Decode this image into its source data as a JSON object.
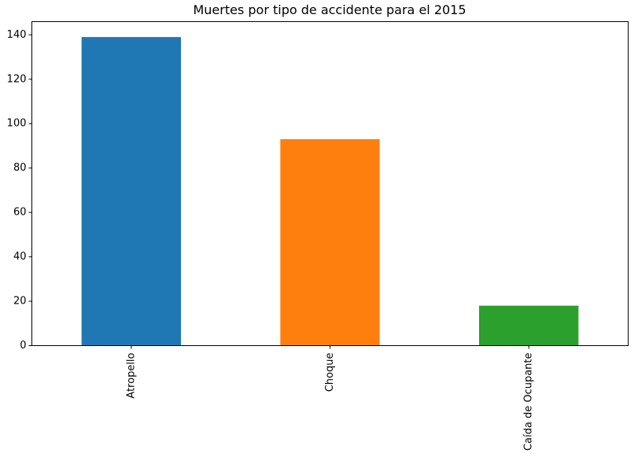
{
  "chart_data": {
    "type": "bar",
    "title": "Muertes por tipo de accidente para el 2015",
    "xlabel": "",
    "ylabel": "",
    "categories": [
      "Atropello",
      "Choque",
      "Caída de Ocupante"
    ],
    "values": [
      139,
      93,
      18
    ],
    "colors": [
      "#1f77b4",
      "#ff7f0e",
      "#2ca02c"
    ],
    "ylim": [
      0,
      145.95
    ],
    "yticks": [
      0,
      20,
      40,
      60,
      80,
      100,
      120,
      140
    ],
    "ytick_labels": [
      "0",
      "20",
      "40",
      "60",
      "80",
      "100",
      "120",
      "140"
    ],
    "grid": false,
    "xtick_rotation": "vertical"
  }
}
